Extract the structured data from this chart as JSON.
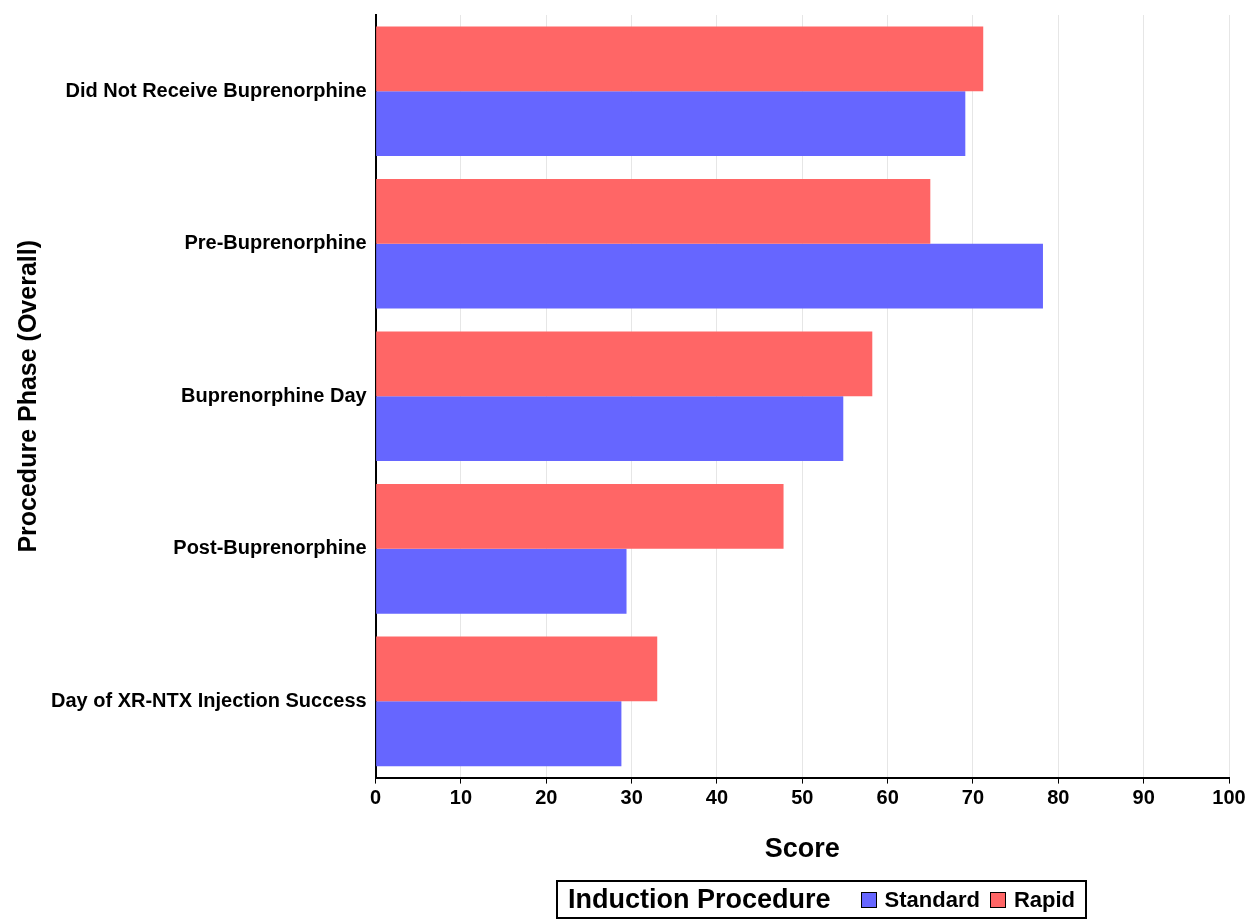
{
  "chart_data": {
    "type": "bar",
    "orientation": "horizontal",
    "xlabel": "Score",
    "ylabel": "Procedure Phase (Overall)",
    "legend_title": "Induction Procedure",
    "legend": "bottom",
    "grid": "x",
    "categories": [
      "Did Not Receive Buprenorphine",
      "Pre-Buprenorphine",
      "Buprenorphine Day",
      "Post-Buprenorphine",
      "Day of XR-NTX Injection Success"
    ],
    "series": [
      {
        "name": "Standard",
        "color": "#6666ff",
        "values": [
          69.1,
          78.2,
          54.8,
          29.4,
          28.8
        ]
      },
      {
        "name": "Rapid",
        "color": "#ff6666",
        "values": [
          71.2,
          65.0,
          58.2,
          47.8,
          33.0
        ]
      }
    ],
    "xlim": [
      0,
      100
    ],
    "xticks": [
      0,
      10,
      20,
      30,
      40,
      50,
      60,
      70,
      80,
      90,
      100
    ]
  }
}
